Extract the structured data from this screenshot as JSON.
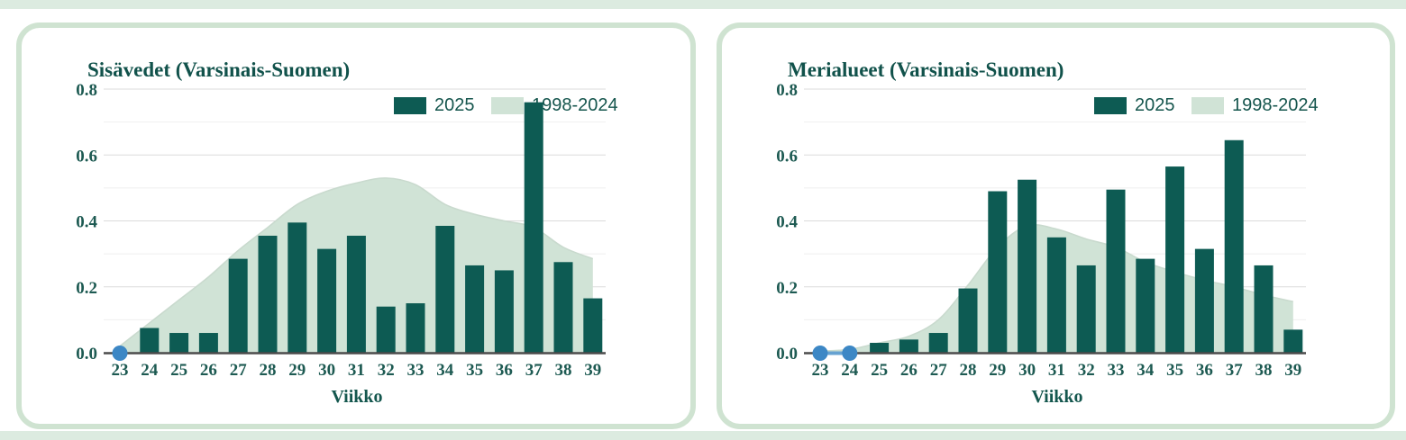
{
  "page": {
    "background": "#ffffff",
    "card_border_color": "#cfe3d1",
    "edge_strip_color": "#dcebe0"
  },
  "palette": {
    "bar_color": "#0d5b53",
    "area_color": "#d0e3d6",
    "area_outline_color": "#c9dace",
    "marker_blue": "#3c87c5",
    "axis_line_color": "#4b4b4b",
    "gridline_major": "#dbdbdb",
    "gridline_minor": "#efefef",
    "title_text_color": "#11524b",
    "tick_text_color": "#1d5a52",
    "legend_text_color": "#16564e"
  },
  "chart_data": [
    {
      "type": "bar",
      "title": "Sisävedet (Varsinais-Suomen)",
      "xlabel": "Viikko",
      "categories": [
        23,
        24,
        25,
        26,
        27,
        28,
        29,
        30,
        31,
        32,
        33,
        34,
        35,
        36,
        37,
        38,
        39
      ],
      "yticks": [
        "0.0",
        "0.2",
        "0.4",
        "0.6",
        "0.8"
      ],
      "ylim": [
        0,
        0.8
      ],
      "grid": "horizontal, minor lines every 0.1",
      "legend_position": "top-right",
      "series": [
        {
          "name": "2025",
          "type": "bar",
          "color": "#0d5b53",
          "values": [
            0,
            0.075,
            0.06,
            0.06,
            0.285,
            0.355,
            0.395,
            0.315,
            0.355,
            0.14,
            0.15,
            0.385,
            0.265,
            0.25,
            0.76,
            0.275,
            0.165
          ]
        },
        {
          "name": "1998-2024",
          "type": "area",
          "color": "#d0e3d6",
          "values": [
            0.02,
            0.09,
            0.16,
            0.23,
            0.31,
            0.38,
            0.45,
            0.49,
            0.515,
            0.53,
            0.51,
            0.45,
            0.42,
            0.4,
            0.38,
            0.32,
            0.285
          ]
        }
      ],
      "zero_marker_weeks": [
        23
      ],
      "marker_color": "#3c87c5"
    },
    {
      "type": "bar",
      "title": "Merialueet (Varsinais-Suomen)",
      "xlabel": "Viikko",
      "categories": [
        23,
        24,
        25,
        26,
        27,
        28,
        29,
        30,
        31,
        32,
        33,
        34,
        35,
        36,
        37,
        38,
        39
      ],
      "yticks": [
        "0.0",
        "0.2",
        "0.4",
        "0.6",
        "0.8"
      ],
      "ylim": [
        0,
        0.8
      ],
      "grid": "horizontal, minor lines every 0.1",
      "legend_position": "top-right",
      "series": [
        {
          "name": "2025",
          "type": "bar",
          "color": "#0d5b53",
          "values": [
            0,
            0,
            0.03,
            0.04,
            0.06,
            0.195,
            0.49,
            0.525,
            0.35,
            0.265,
            0.495,
            0.285,
            0.565,
            0.315,
            0.645,
            0.265,
            0.07
          ]
        },
        {
          "name": "1998-2024",
          "type": "area",
          "color": "#d0e3d6",
          "values": [
            0.005,
            0.01,
            0.03,
            0.05,
            0.1,
            0.205,
            0.32,
            0.385,
            0.375,
            0.345,
            0.32,
            0.275,
            0.245,
            0.22,
            0.2,
            0.175,
            0.155
          ]
        }
      ],
      "zero_marker_weeks": [
        23,
        24
      ],
      "marker_color": "#3c87c5"
    }
  ]
}
